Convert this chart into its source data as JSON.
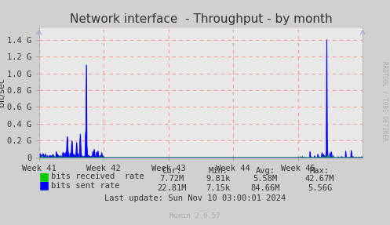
{
  "title": "Network interface  - Throughput - by month",
  "ylabel": "bit/sec",
  "background_color": "#d0d0d0",
  "plot_bg_color": "#e8e8e8",
  "grid_color": "#ff9999",
  "yticks": [
    0.0,
    200000000.0,
    400000000.0,
    600000000.0,
    800000000.0,
    1000000000.0,
    1200000000.0,
    1400000000.0
  ],
  "ytick_labels": [
    "0",
    "0.2 G",
    "0.4 G",
    "0.6 G",
    "0.8 G",
    "1.0 G",
    "1.2 G",
    "1.4 G"
  ],
  "xtick_labels": [
    "Week 41",
    "Week 42",
    "Week 43",
    "Week 44",
    "Week 45"
  ],
  "ymax": 1550000000.0,
  "legend_entries": [
    "bits received  rate",
    "bits sent rate"
  ],
  "legend_colors": [
    "#00cc00",
    "#0000ff"
  ],
  "stats_headers": [
    "Cur:",
    "Min:",
    "Avg:",
    "Max:"
  ],
  "stats_received": [
    "7.72M",
    "9.81k",
    "5.58M",
    "42.67M"
  ],
  "stats_sent": [
    "22.81M",
    "7.15k",
    "84.66M",
    "5.56G"
  ],
  "last_update": "Last update: Sun Nov 10 03:00:01 2024",
  "munin_version": "Munin 2.0.57",
  "watermark": "RRDTOOL / TOBI OETIKER"
}
